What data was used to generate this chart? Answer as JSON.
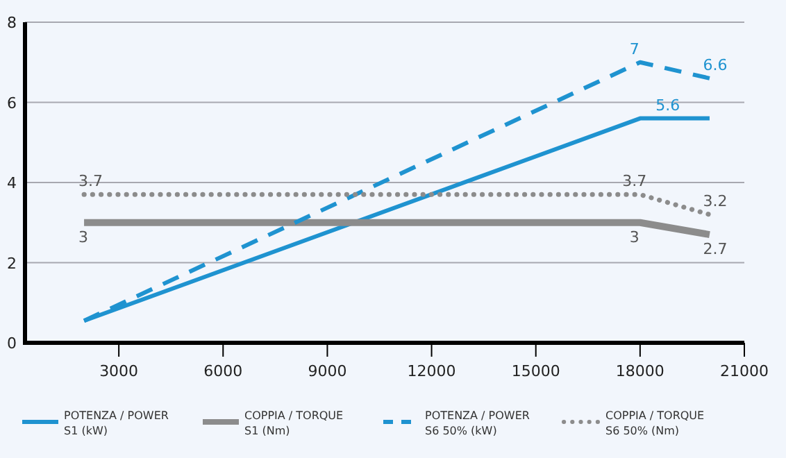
{
  "chart_data": {
    "type": "line",
    "x": [
      2000,
      18000,
      20000
    ],
    "xlim": [
      300,
      21000
    ],
    "xticks": [
      3000,
      6000,
      9000,
      12000,
      15000,
      18000,
      21000
    ],
    "ylim": [
      0,
      8
    ],
    "yticks": [
      0,
      2,
      4,
      6,
      8
    ],
    "grid": "y",
    "legend": "bottom",
    "series": [
      {
        "name": "POTENZA / POWER\nS1 (kW)",
        "color": "#1f93d0",
        "values": [
          0.55,
          5.6,
          5.6
        ],
        "value_labels": [
          null,
          "5.6",
          null
        ],
        "line_style": "solid"
      },
      {
        "name": "COPPIA / TORQUE\nS1 (Nm)",
        "color": "#8c8c8c",
        "values": [
          3,
          3,
          2.7
        ],
        "value_labels": [
          "3",
          "3",
          "2.7"
        ],
        "line_style": "solid"
      },
      {
        "name": "POTENZA / POWER\nS6 50% (kW)",
        "color": "#1f93d0",
        "values": [
          0.55,
          7,
          6.6
        ],
        "value_labels": [
          null,
          "7",
          "6.6"
        ],
        "line_style": "dashed"
      },
      {
        "name": "COPPIA / TORQUE\nS6 50% (Nm)",
        "color": "#8c8c8c",
        "values": [
          3.7,
          3.7,
          3.2
        ],
        "value_labels": [
          "3.7",
          "3.7",
          "3.2"
        ],
        "line_style": "dotted"
      }
    ]
  }
}
